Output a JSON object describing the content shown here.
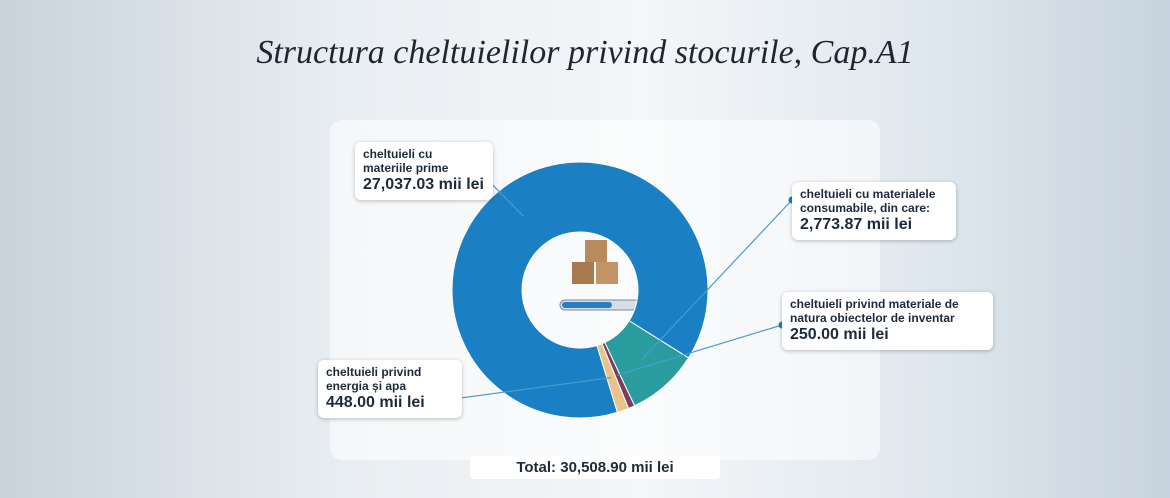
{
  "chart_data": {
    "type": "donut",
    "title": "Structura cheltuielilor privind stocurile, Cap.A1",
    "categories": [
      "cheltuieli cu materiile prime",
      "cheltuieli cu materialele consumabile, din care:",
      "cheltuieli privind materiale de natura obiectelor de inventar",
      "cheltuieli privind energia și apa"
    ],
    "values": [
      27037.03,
      2773.87,
      250.0,
      448.0
    ],
    "value_labels": [
      "27,037.03 mii lei",
      "2,773.87 mii lei",
      "250.00 mii lei",
      "448.00 mii lei"
    ],
    "colors": [
      "#1b7fc3",
      "#2a9c9e",
      "#7a3f5f",
      "#e9c48a"
    ],
    "total_label": "Total: 30,508.90 mii lei"
  }
}
